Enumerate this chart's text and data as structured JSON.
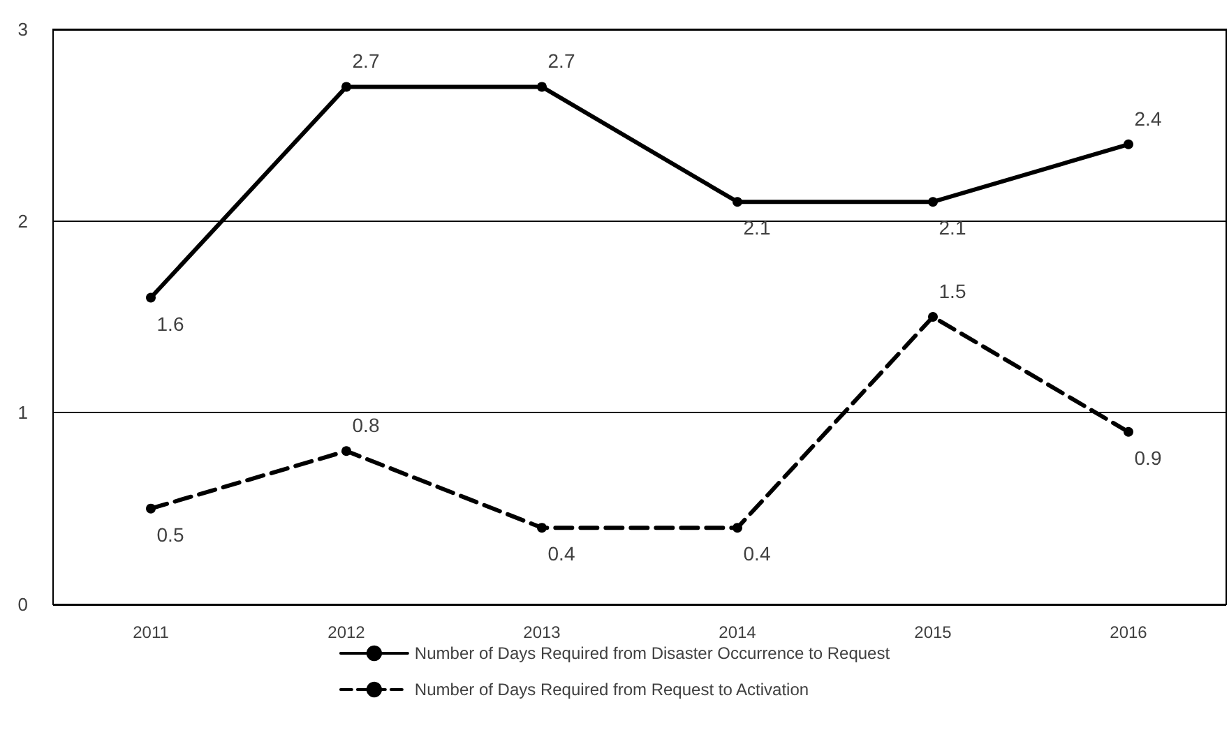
{
  "chart_data": {
    "type": "line",
    "categories": [
      "2011",
      "2012",
      "2013",
      "2014",
      "2015",
      "2016"
    ],
    "series": [
      {
        "name": "Number of Days Required from Disaster Occurrence to Request",
        "color": "#000000",
        "line_style": "solid",
        "values": [
          1.6,
          2.7,
          2.7,
          2.1,
          2.1,
          2.4
        ]
      },
      {
        "name": "Number of Days Required from Request to Activation",
        "color": "#000000",
        "line_style": "dashed",
        "values": [
          0.5,
          0.8,
          0.4,
          0.4,
          1.5,
          0.9
        ]
      }
    ],
    "ylim": [
      0,
      3
    ],
    "yticks": [
      0,
      1,
      2,
      3
    ],
    "grid": "y",
    "legend": "bottom",
    "marker": "circle",
    "data_labels": true
  }
}
